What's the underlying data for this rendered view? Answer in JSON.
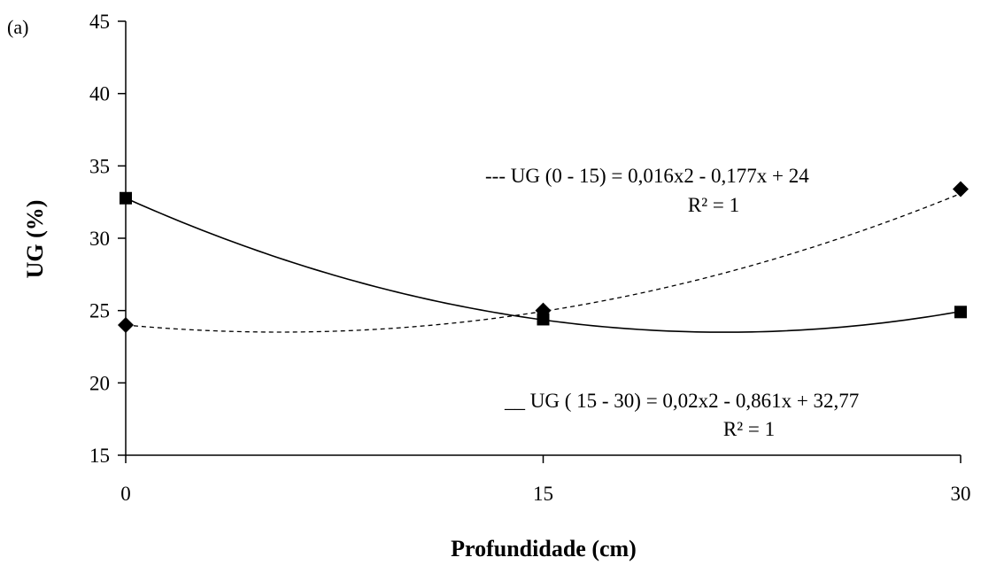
{
  "chart_data": {
    "type": "line",
    "panel_label": "(a)",
    "xlabel": "Profundidade (cm)",
    "ylabel": "UG (%)",
    "x_ticks": [
      0,
      15,
      30
    ],
    "y_ticks": [
      15,
      20,
      25,
      30,
      35,
      40,
      45
    ],
    "xlim": [
      0,
      30
    ],
    "ylim": [
      15,
      45
    ],
    "grid": false,
    "series": [
      {
        "name": "UG (0 - 15)",
        "marker": "diamond",
        "line_style": "dashed",
        "x": [
          0,
          15,
          30
        ],
        "y": [
          24.0,
          25.0,
          33.4
        ],
        "trend": {
          "a": 0.016,
          "b": -0.177,
          "c": 24
        },
        "equation": "--- UG (0 - 15) = 0,016x2 - 0,177x + 24",
        "r2": "R² = 1"
      },
      {
        "name": "UG ( 15 - 30)",
        "marker": "square",
        "line_style": "solid",
        "x": [
          0,
          15,
          30
        ],
        "y": [
          32.77,
          24.4,
          24.9
        ],
        "trend": {
          "a": 0.02,
          "b": -0.861,
          "c": 32.77
        },
        "equation": "__ UG ( 15 - 30) = 0,02x2 - 0,861x + 32,77",
        "r2": "R² = 1"
      }
    ]
  }
}
